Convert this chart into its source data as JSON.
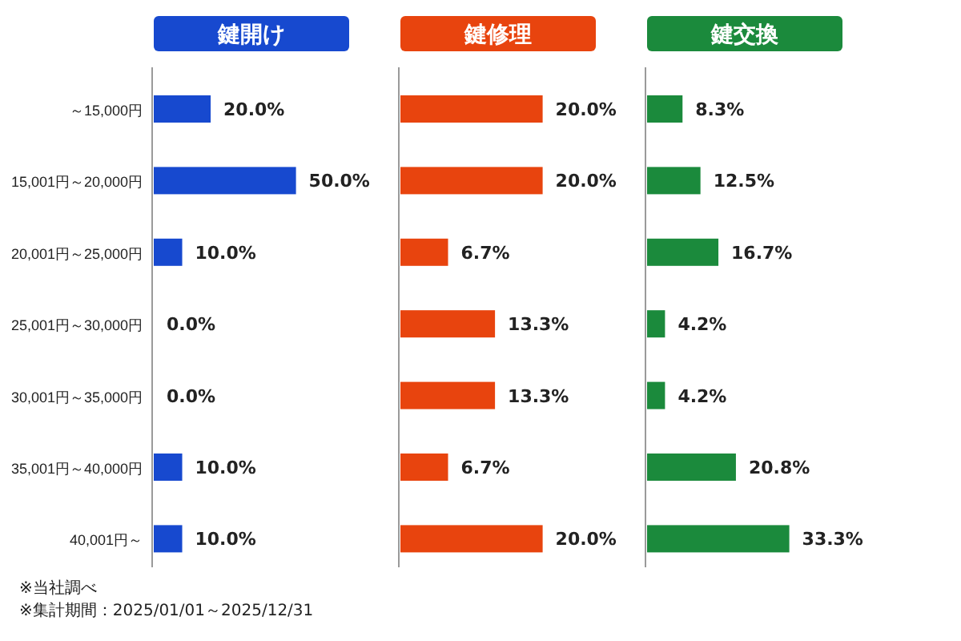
{
  "chart_data": [
    {
      "type": "bar",
      "orientation": "horizontal",
      "title": "鍵開け",
      "color": "#1749cf",
      "categories": [
        "～15,000円",
        "15,001円～20,000円",
        "20,001円～25,000円",
        "25,001円～30,000円",
        "30,001円～35,000円",
        "35,001円～40,000円",
        "40,001円～"
      ],
      "values": [
        20.0,
        50.0,
        10.0,
        0.0,
        0.0,
        10.0,
        10.0
      ],
      "value_labels": [
        "20.0%",
        "50.0%",
        "10.0%",
        "0.0%",
        "0.0%",
        "10.0%",
        "10.0%"
      ],
      "annotations": [
        "※当社調べ",
        "※集計期間：2025/01/01～2025/12/31"
      ]
    },
    {
      "type": "bar",
      "orientation": "horizontal",
      "title": "鍵修理",
      "color": "#e8440e",
      "values": [
        20.0,
        20.0,
        6.7,
        13.3,
        13.3,
        6.7,
        20.0
      ],
      "value_labels": [
        "20.0%",
        "20.0%",
        "6.7%",
        "13.3%",
        "13.3%",
        "6.7%",
        "20.0%"
      ]
    },
    {
      "type": "bar",
      "orientation": "horizontal",
      "title": "鍵交換",
      "color": "#1b8a3c",
      "values": [
        8.3,
        12.5,
        16.7,
        4.2,
        4.2,
        20.8,
        33.3
      ],
      "value_labels": [
        "8.3%",
        "12.5%",
        "16.7%",
        "4.2%",
        "4.2%",
        "20.8%",
        "33.3%"
      ]
    }
  ]
}
